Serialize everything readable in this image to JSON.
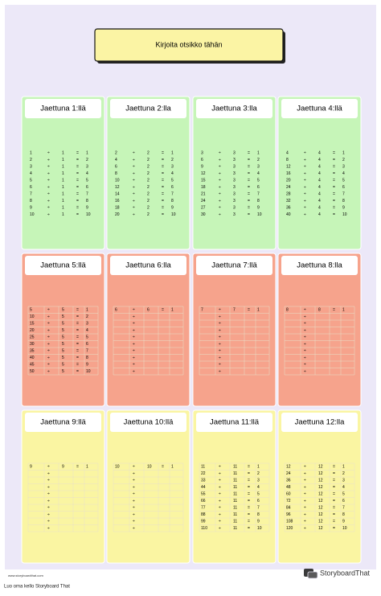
{
  "title": "Kirjoita otsikko tähän",
  "divide_sign": "÷",
  "equals_sign": "=",
  "cards": [
    {
      "title": "Jaettuna 1:llä",
      "rows": [
        [
          1,
          1,
          1
        ],
        [
          2,
          1,
          2
        ],
        [
          3,
          1,
          3
        ],
        [
          4,
          1,
          4
        ],
        [
          5,
          1,
          5
        ],
        [
          6,
          1,
          6
        ],
        [
          7,
          1,
          7
        ],
        [
          8,
          1,
          8
        ],
        [
          9,
          1,
          9
        ],
        [
          10,
          1,
          10
        ]
      ]
    },
    {
      "title": "Jaettuna 2:lla",
      "rows": [
        [
          2,
          2,
          1
        ],
        [
          4,
          2,
          2
        ],
        [
          6,
          2,
          3
        ],
        [
          8,
          2,
          4
        ],
        [
          10,
          2,
          5
        ],
        [
          12,
          2,
          6
        ],
        [
          14,
          2,
          7
        ],
        [
          16,
          2,
          8
        ],
        [
          18,
          2,
          9
        ],
        [
          20,
          2,
          10
        ]
      ]
    },
    {
      "title": "Jaettuna 3:lla",
      "rows": [
        [
          3,
          3,
          1
        ],
        [
          6,
          3,
          2
        ],
        [
          9,
          3,
          3
        ],
        [
          12,
          3,
          4
        ],
        [
          15,
          3,
          5
        ],
        [
          18,
          3,
          6
        ],
        [
          21,
          3,
          7
        ],
        [
          24,
          3,
          8
        ],
        [
          27,
          3,
          9
        ],
        [
          30,
          3,
          10
        ]
      ]
    },
    {
      "title": "Jaettuna 4:llä",
      "rows": [
        [
          4,
          4,
          1
        ],
        [
          8,
          4,
          2
        ],
        [
          12,
          4,
          3
        ],
        [
          16,
          4,
          4
        ],
        [
          20,
          4,
          5
        ],
        [
          24,
          4,
          6
        ],
        [
          28,
          4,
          7
        ],
        [
          32,
          4,
          8
        ],
        [
          36,
          4,
          9
        ],
        [
          40,
          4,
          10
        ]
      ]
    },
    {
      "title": "Jaettuna 5:llä",
      "rows": [
        [
          5,
          5,
          1
        ],
        [
          10,
          5,
          2
        ],
        [
          15,
          5,
          3
        ],
        [
          20,
          5,
          4
        ],
        [
          25,
          5,
          5
        ],
        [
          30,
          5,
          6
        ],
        [
          35,
          5,
          7
        ],
        [
          40,
          5,
          8
        ],
        [
          45,
          5,
          9
        ],
        [
          50,
          5,
          10
        ]
      ]
    },
    {
      "title": "Jaettuna 6:lla",
      "rows": [
        [
          6,
          6,
          1
        ]
      ]
    },
    {
      "title": "Jaettuna 7:llä",
      "rows": [
        [
          7,
          7,
          1
        ]
      ]
    },
    {
      "title": "Jaettuna 8:lla",
      "rows": [
        [
          8,
          8,
          1
        ]
      ]
    },
    {
      "title": "Jaettuna 9:llä",
      "rows": [
        [
          9,
          9,
          1
        ]
      ]
    },
    {
      "title": "Jaettuna 10:llä",
      "rows": [
        [
          10,
          10,
          1
        ]
      ]
    },
    {
      "title": "Jaettuna 11:llä",
      "rows": [
        [
          11,
          11,
          1
        ],
        [
          22,
          11,
          2
        ],
        [
          33,
          11,
          3
        ],
        [
          44,
          11,
          4
        ],
        [
          55,
          11,
          5
        ],
        [
          66,
          11,
          6
        ],
        [
          77,
          11,
          7
        ],
        [
          88,
          11,
          8
        ],
        [
          99,
          11,
          9
        ],
        [
          110,
          11,
          10
        ]
      ]
    },
    {
      "title": "Jaettuna 12:lla",
      "rows": [
        [
          12,
          12,
          1
        ],
        [
          24,
          12,
          2
        ],
        [
          36,
          12,
          3
        ],
        [
          48,
          12,
          4
        ],
        [
          60,
          12,
          5
        ],
        [
          72,
          12,
          6
        ],
        [
          84,
          12,
          7
        ],
        [
          96,
          12,
          8
        ],
        [
          108,
          12,
          9
        ],
        [
          120,
          12,
          10
        ]
      ]
    }
  ],
  "footer": {
    "url": "www.storyboardthat.com",
    "credit": "Luo oma kello Storyboard That",
    "logo": "StoryboardThat"
  }
}
